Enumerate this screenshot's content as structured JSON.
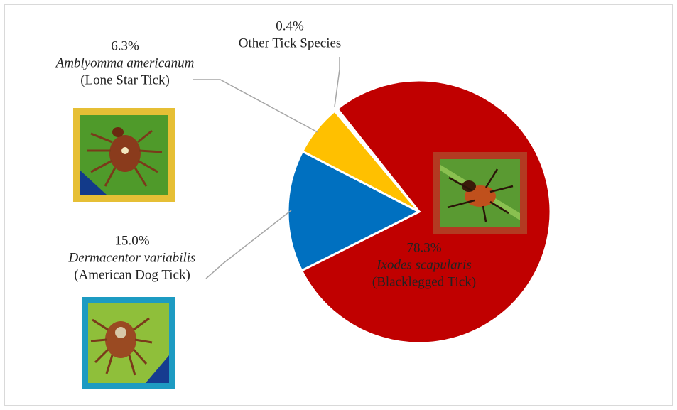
{
  "chart_data": {
    "type": "pie",
    "categories": [
      "Ixodes scapularis",
      "Dermacentor variabilis",
      "Amblyomma americanum",
      "Other Tick Species"
    ],
    "common_names": [
      "(Blacklegged  Tick)",
      "(American  Dog Tick)",
      "(Lone Star Tick)",
      null
    ],
    "values": [
      78.3,
      15.0,
      6.3,
      0.4
    ],
    "value_labels": [
      "78.3%",
      "15.0%",
      "6.3%",
      "0.4%"
    ],
    "colors": [
      "#c00000",
      "#0070c0",
      "#ffc000",
      "#ffffff"
    ]
  }
}
